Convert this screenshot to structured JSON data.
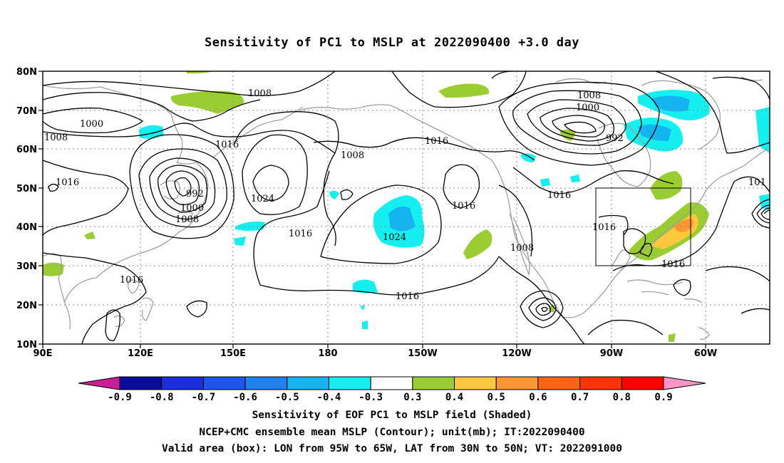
{
  "title": "Sensitivity of PC1 to MSLP at 2022090400 +3.0 day",
  "axes": {
    "lat_labels": [
      "80N",
      "70N",
      "60N",
      "50N",
      "40N",
      "30N",
      "20N",
      "10N"
    ],
    "lon_labels": [
      "90E",
      "120E",
      "150E",
      "180",
      "150W",
      "120W",
      "90W",
      "60W"
    ]
  },
  "contour_labels": [
    {
      "id": "c1008a",
      "text": "1008"
    },
    {
      "id": "c1000a",
      "text": "1000"
    },
    {
      "id": "c1008b",
      "text": "1008"
    },
    {
      "id": "c1016a",
      "text": "1016"
    },
    {
      "id": "c992a",
      "text": "992"
    },
    {
      "id": "c1000b",
      "text": "1000"
    },
    {
      "id": "c1008c",
      "text": "1008"
    },
    {
      "id": "c1016b",
      "text": "1016"
    },
    {
      "id": "c1024a",
      "text": "1024"
    },
    {
      "id": "c1016c",
      "text": "1016"
    },
    {
      "id": "c1008d",
      "text": "1008"
    },
    {
      "id": "c1016d",
      "text": "1016"
    },
    {
      "id": "c1024b",
      "text": "1024"
    },
    {
      "id": "c1016e",
      "text": "1016"
    },
    {
      "id": "c1016f",
      "text": "1016"
    },
    {
      "id": "c1008e",
      "text": "1008"
    },
    {
      "id": "c1000c",
      "text": "1000"
    },
    {
      "id": "c992b",
      "text": "992"
    },
    {
      "id": "c1016g",
      "text": "1016"
    },
    {
      "id": "c1008f",
      "text": "1008"
    },
    {
      "id": "c1016h",
      "text": "1016"
    },
    {
      "id": "c1016i",
      "text": "1016"
    },
    {
      "id": "c101",
      "text": "101"
    },
    {
      "id": "c1016j",
      "text": "1016"
    }
  ],
  "colorbar": {
    "labels": [
      "-0.9",
      "-0.8",
      "-0.7",
      "-0.6",
      "-0.5",
      "-0.4",
      "-0.3",
      "0.3",
      "0.4",
      "0.5",
      "0.6",
      "0.7",
      "0.8",
      "0.9"
    ],
    "colors": [
      "#0a0a9c",
      "#1a2ee0",
      "#1e55f0",
      "#1e82f0",
      "#14b4f0",
      "#14f0f0",
      "#ffffff",
      "#9acd32",
      "#ffc83c",
      "#ff9632",
      "#ff6414",
      "#ff320a",
      "#ff0000"
    ],
    "low_arrow_color": "#c81e96",
    "high_arrow_color": "#ff96c8"
  },
  "captions": [
    "Sensitivity of EOF PC1 to MSLP field (Shaded)",
    "NCEP+CMC ensemble mean MSLP (Contour); unit(mb); IT:2022090400",
    "Valid area (box): LON from 95W to 65W, LAT from 30N to 50N; VT: 2022091000"
  ],
  "colors": {
    "contour": "#000000",
    "coast": "#a0a0a0",
    "grid": "#8c8c8c",
    "neg_shade": "#14f0f0",
    "neg_shade_dark": "#14b4f0",
    "pos_shade": "#9acd32",
    "pos_yellow": "#ffc83c",
    "pos_orange": "#ff9632"
  }
}
